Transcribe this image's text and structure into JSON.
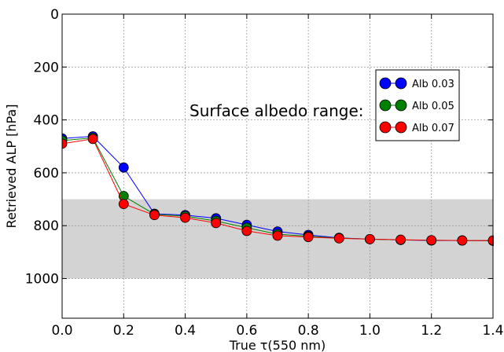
{
  "chart_data": {
    "type": "line",
    "xlabel": "True  τ(550  nm)",
    "ylabel": "Retrieved ALP [hPa]",
    "xlim": [
      0.0,
      1.4
    ],
    "ylim": [
      0,
      1150
    ],
    "y_inverted": true,
    "grid": true,
    "x_ticks": [
      0.0,
      0.2,
      0.4,
      0.6,
      0.8,
      1.0,
      1.2,
      1.4
    ],
    "x_tick_labels": [
      "0.0",
      "0.2",
      "0.4",
      "0.6",
      "0.8",
      "1.0",
      "1.2",
      "1.4"
    ],
    "y_ticks": [
      0,
      200,
      400,
      600,
      800,
      1000
    ],
    "y_tick_labels": [
      "0",
      "200",
      "400",
      "600",
      "800",
      "1000"
    ],
    "shaded_band": {
      "y_range": [
        700,
        1000
      ],
      "color": "#d3d3d3"
    },
    "annotation": "Surface albedo range:",
    "legend_position": "upper-right",
    "x": [
      0.0,
      0.1,
      0.2,
      0.3,
      0.4,
      0.5,
      0.6,
      0.7,
      0.8,
      0.9,
      1.0,
      1.1,
      1.2,
      1.3,
      1.4
    ],
    "series": [
      {
        "name": "Alb 0.03",
        "color": "#0000ff",
        "values": [
          470,
          462,
          580,
          755,
          760,
          772,
          797,
          822,
          835,
          846,
          851,
          854,
          856,
          856,
          857
        ]
      },
      {
        "name": "Alb 0.05",
        "color": "#008000",
        "values": [
          478,
          468,
          688,
          757,
          764,
          782,
          808,
          832,
          840,
          847,
          851,
          854,
          855,
          856,
          857
        ]
      },
      {
        "name": "Alb 0.07",
        "color": "#ff0000",
        "values": [
          490,
          472,
          718,
          760,
          770,
          790,
          820,
          838,
          843,
          848,
          851,
          853,
          855,
          856,
          856
        ]
      }
    ]
  }
}
